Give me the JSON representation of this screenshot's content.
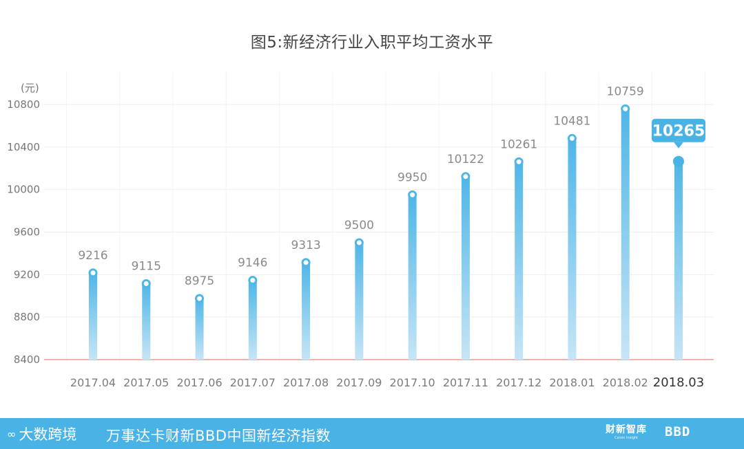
{
  "chart_data": {
    "type": "bar",
    "title": "图5:新经济行业入职平均工资水平",
    "ylabel": "(元)",
    "xlabel": "",
    "ylim": [
      8400,
      10800
    ],
    "yticks": [
      8400,
      8800,
      9200,
      9600,
      10000,
      10400,
      10800
    ],
    "categories": [
      "2017.04",
      "2017.05",
      "2017.06",
      "2017.07",
      "2017.08",
      "2017.09",
      "2017.10",
      "2017.11",
      "2017.12",
      "2018.01",
      "2018.02",
      "2018.03"
    ],
    "values": [
      9216,
      9115,
      8975,
      9146,
      9313,
      9500,
      9950,
      10122,
      10261,
      10481,
      10759,
      10265
    ],
    "highlight_index": 11,
    "grid": true,
    "colors": {
      "bar_top": "#4fb6e8",
      "bar_bottom": "#c6e5f6",
      "baseline": "#f08080",
      "highlight": "#4ab3e6"
    }
  },
  "footer": {
    "logo_text": "大数跨境",
    "logo_icon": "infinity-loop-icon",
    "source": "万事达卡财新BBD中国新经济指数",
    "brand1": "财新智库",
    "brand1_sub": "Caixin Insight",
    "brand2": "BBD",
    "background": "#4ab3e6"
  }
}
